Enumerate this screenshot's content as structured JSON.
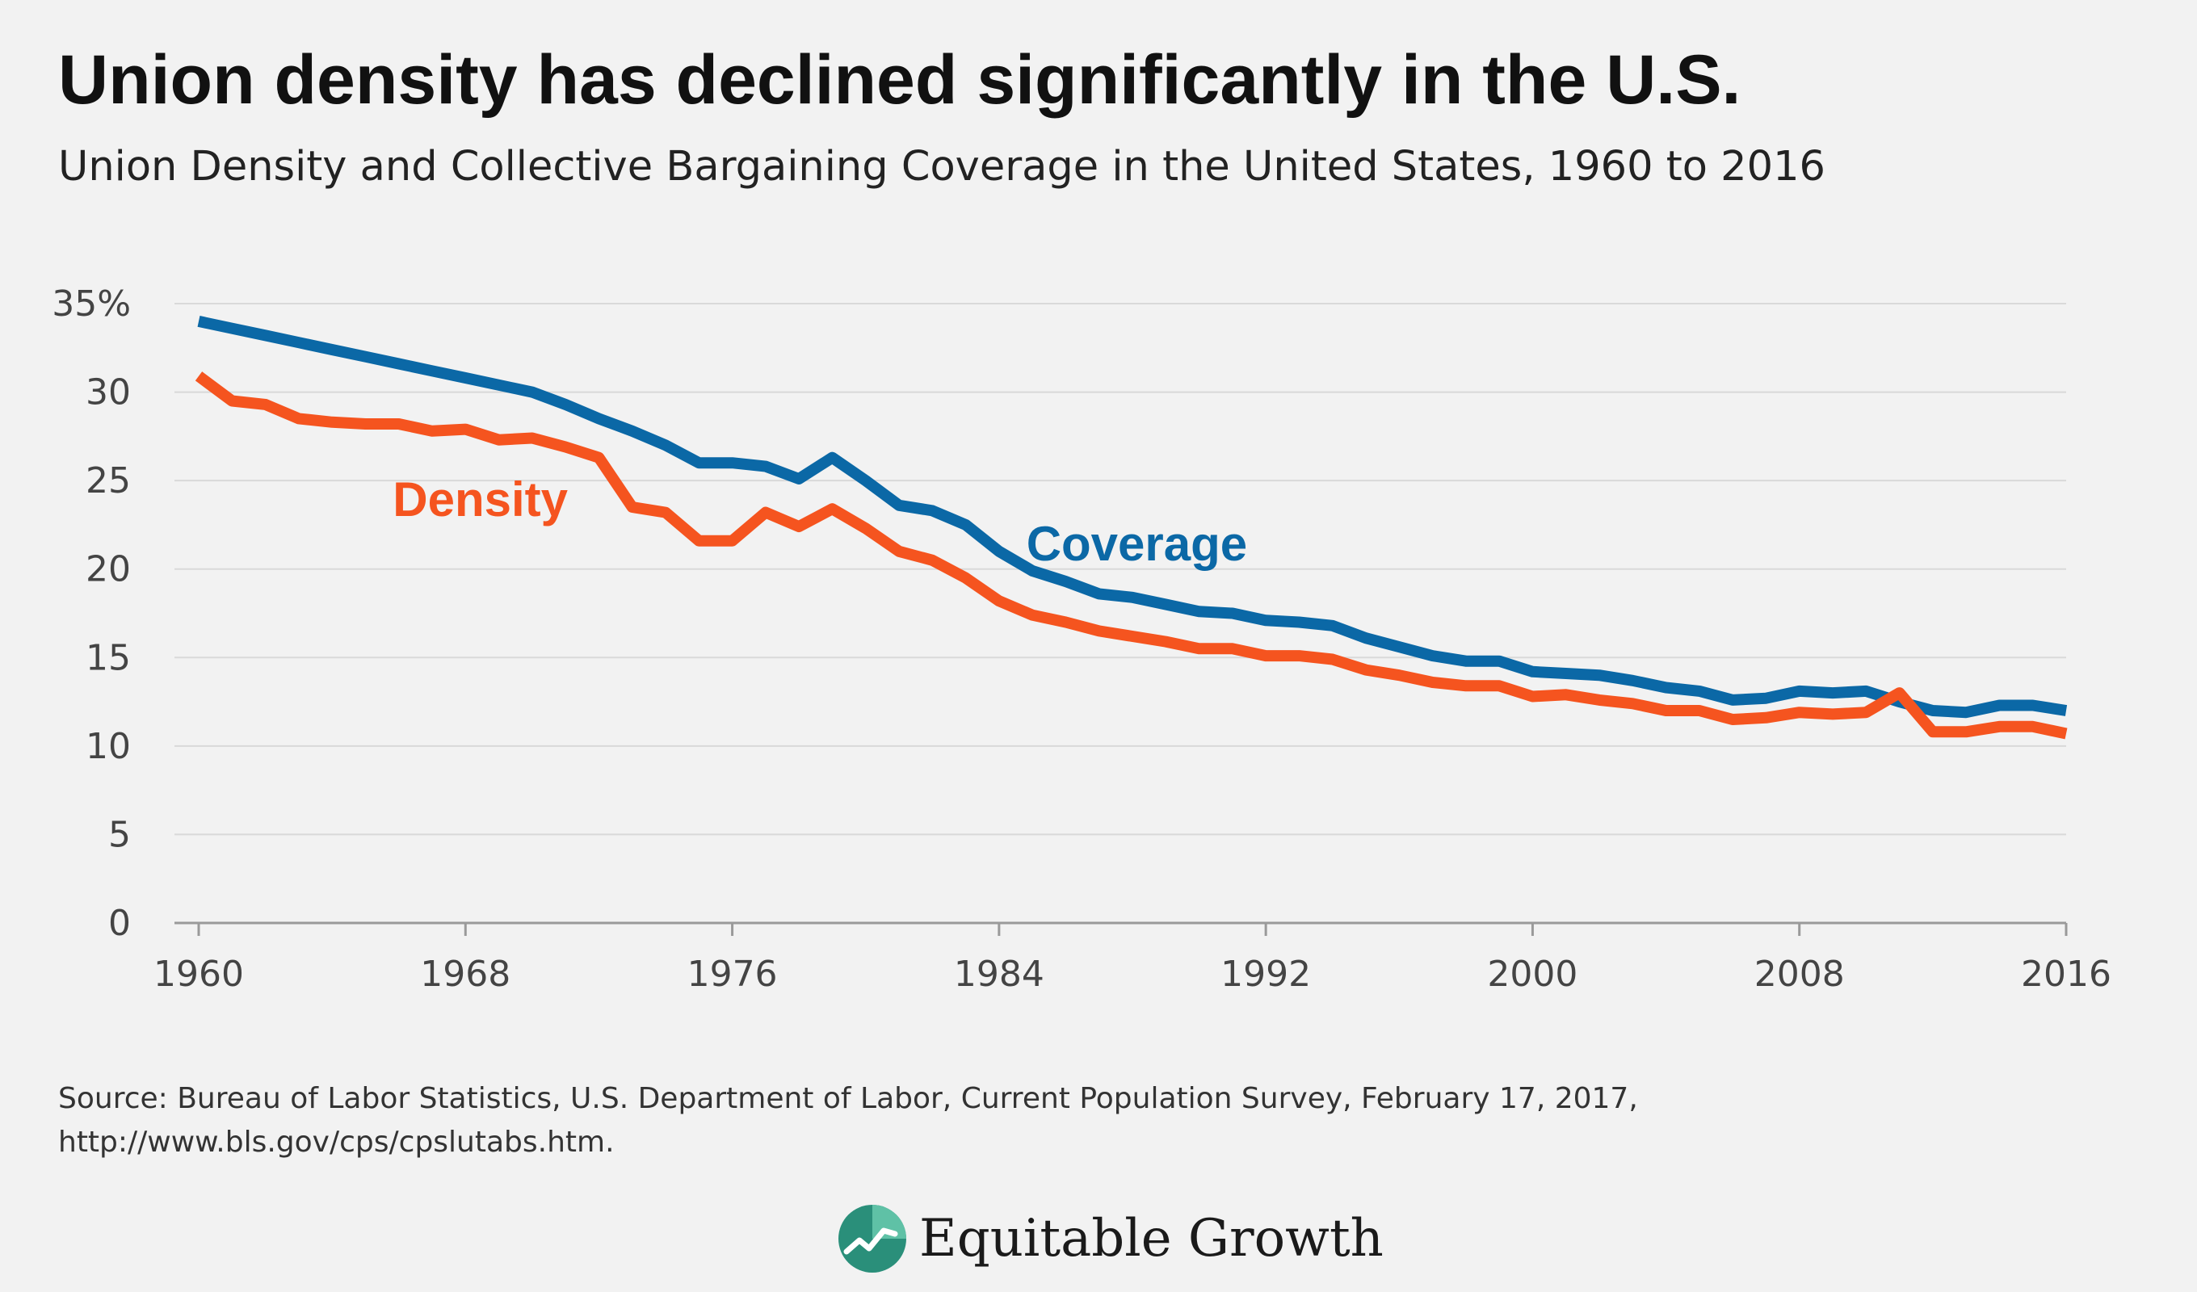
{
  "header": {
    "title": "Union density has declined significantly in the U.S.",
    "subtitle": "Union Density and Collective Bargaining Coverage in the United States, 1960 to 2016"
  },
  "chart_data": {
    "type": "line",
    "x": [
      1960,
      1961,
      1962,
      1963,
      1964,
      1965,
      1966,
      1967,
      1968,
      1969,
      1970,
      1971,
      1972,
      1973,
      1974,
      1975,
      1976,
      1977,
      1978,
      1979,
      1980,
      1981,
      1982,
      1983,
      1984,
      1985,
      1986,
      1987,
      1988,
      1989,
      1990,
      1991,
      1992,
      1993,
      1994,
      1995,
      1996,
      1997,
      1998,
      1999,
      2000,
      2001,
      2002,
      2003,
      2004,
      2005,
      2006,
      2007,
      2008,
      2009,
      2010,
      2011,
      2012,
      2013,
      2014,
      2015,
      2016
    ],
    "series": [
      {
        "name": "Coverage",
        "color": "#0b68a6",
        "values": [
          34.0,
          33.6,
          33.2,
          32.8,
          32.4,
          32.0,
          31.6,
          31.2,
          30.8,
          30.4,
          30.0,
          29.3,
          28.5,
          27.8,
          27.0,
          26.0,
          26.0,
          25.8,
          25.1,
          26.3,
          25.0,
          23.6,
          23.3,
          22.5,
          21.0,
          19.9,
          19.3,
          18.6,
          18.4,
          18.0,
          17.6,
          17.5,
          17.1,
          17.0,
          16.8,
          16.1,
          15.6,
          15.1,
          14.8,
          14.8,
          14.2,
          14.1,
          14.0,
          13.7,
          13.3,
          13.1,
          12.6,
          12.7,
          13.1,
          13.0,
          13.1,
          12.5,
          12.0,
          11.9,
          12.3,
          12.3,
          12.0
        ]
      },
      {
        "name": "Density",
        "color": "#f5541f",
        "values": [
          30.9,
          29.5,
          29.3,
          28.5,
          28.3,
          28.2,
          28.2,
          27.8,
          27.9,
          27.3,
          27.4,
          26.9,
          26.3,
          23.5,
          23.2,
          21.6,
          21.6,
          23.2,
          22.4,
          23.4,
          22.3,
          21.0,
          20.5,
          19.5,
          18.2,
          17.4,
          17.0,
          16.5,
          16.2,
          15.9,
          15.5,
          15.5,
          15.1,
          15.1,
          14.9,
          14.3,
          14.0,
          13.6,
          13.4,
          13.4,
          12.8,
          12.9,
          12.6,
          12.4,
          12.0,
          12.0,
          11.5,
          11.6,
          11.9,
          11.8,
          11.9,
          13.0,
          10.8,
          10.8,
          11.1,
          11.1,
          10.7
        ]
      }
    ],
    "ylim": [
      0,
      35
    ],
    "xlim": [
      1960,
      2016
    ],
    "yticks": [
      0,
      5,
      10,
      15,
      20,
      25,
      30,
      35
    ],
    "ytick_labels": [
      "0",
      "5",
      "10",
      "15",
      "20",
      "25",
      "30",
      "35%"
    ],
    "xticks": [
      1960,
      1968,
      1976,
      1984,
      1992,
      2000,
      2008,
      2016
    ],
    "xtick_labels": [
      "1960",
      "1968",
      "1976",
      "1984",
      "1992",
      "2000",
      "2008",
      "2016"
    ],
    "xlabel": "",
    "ylabel": "",
    "grid": true,
    "annotations": [
      {
        "text": "Density",
        "series": "Density",
        "x": 1968,
        "y": 24.0,
        "color": "#f5541f"
      },
      {
        "text": "Coverage",
        "series": "Coverage",
        "x": 1987,
        "y": 21.5,
        "color": "#0b68a6"
      }
    ]
  },
  "footer": {
    "source_line1": "Source: Bureau of Labor Statistics, U.S. Department of Labor, Current Population Survey, February 17, 2017,",
    "source_line2": "http://www.bls.gov/cps/cpslutabs.htm.",
    "brand_name": "Equitable Growth",
    "brand_logo_icon": "rising-line-circle-icon",
    "brand_color": "#2a8f7a"
  }
}
